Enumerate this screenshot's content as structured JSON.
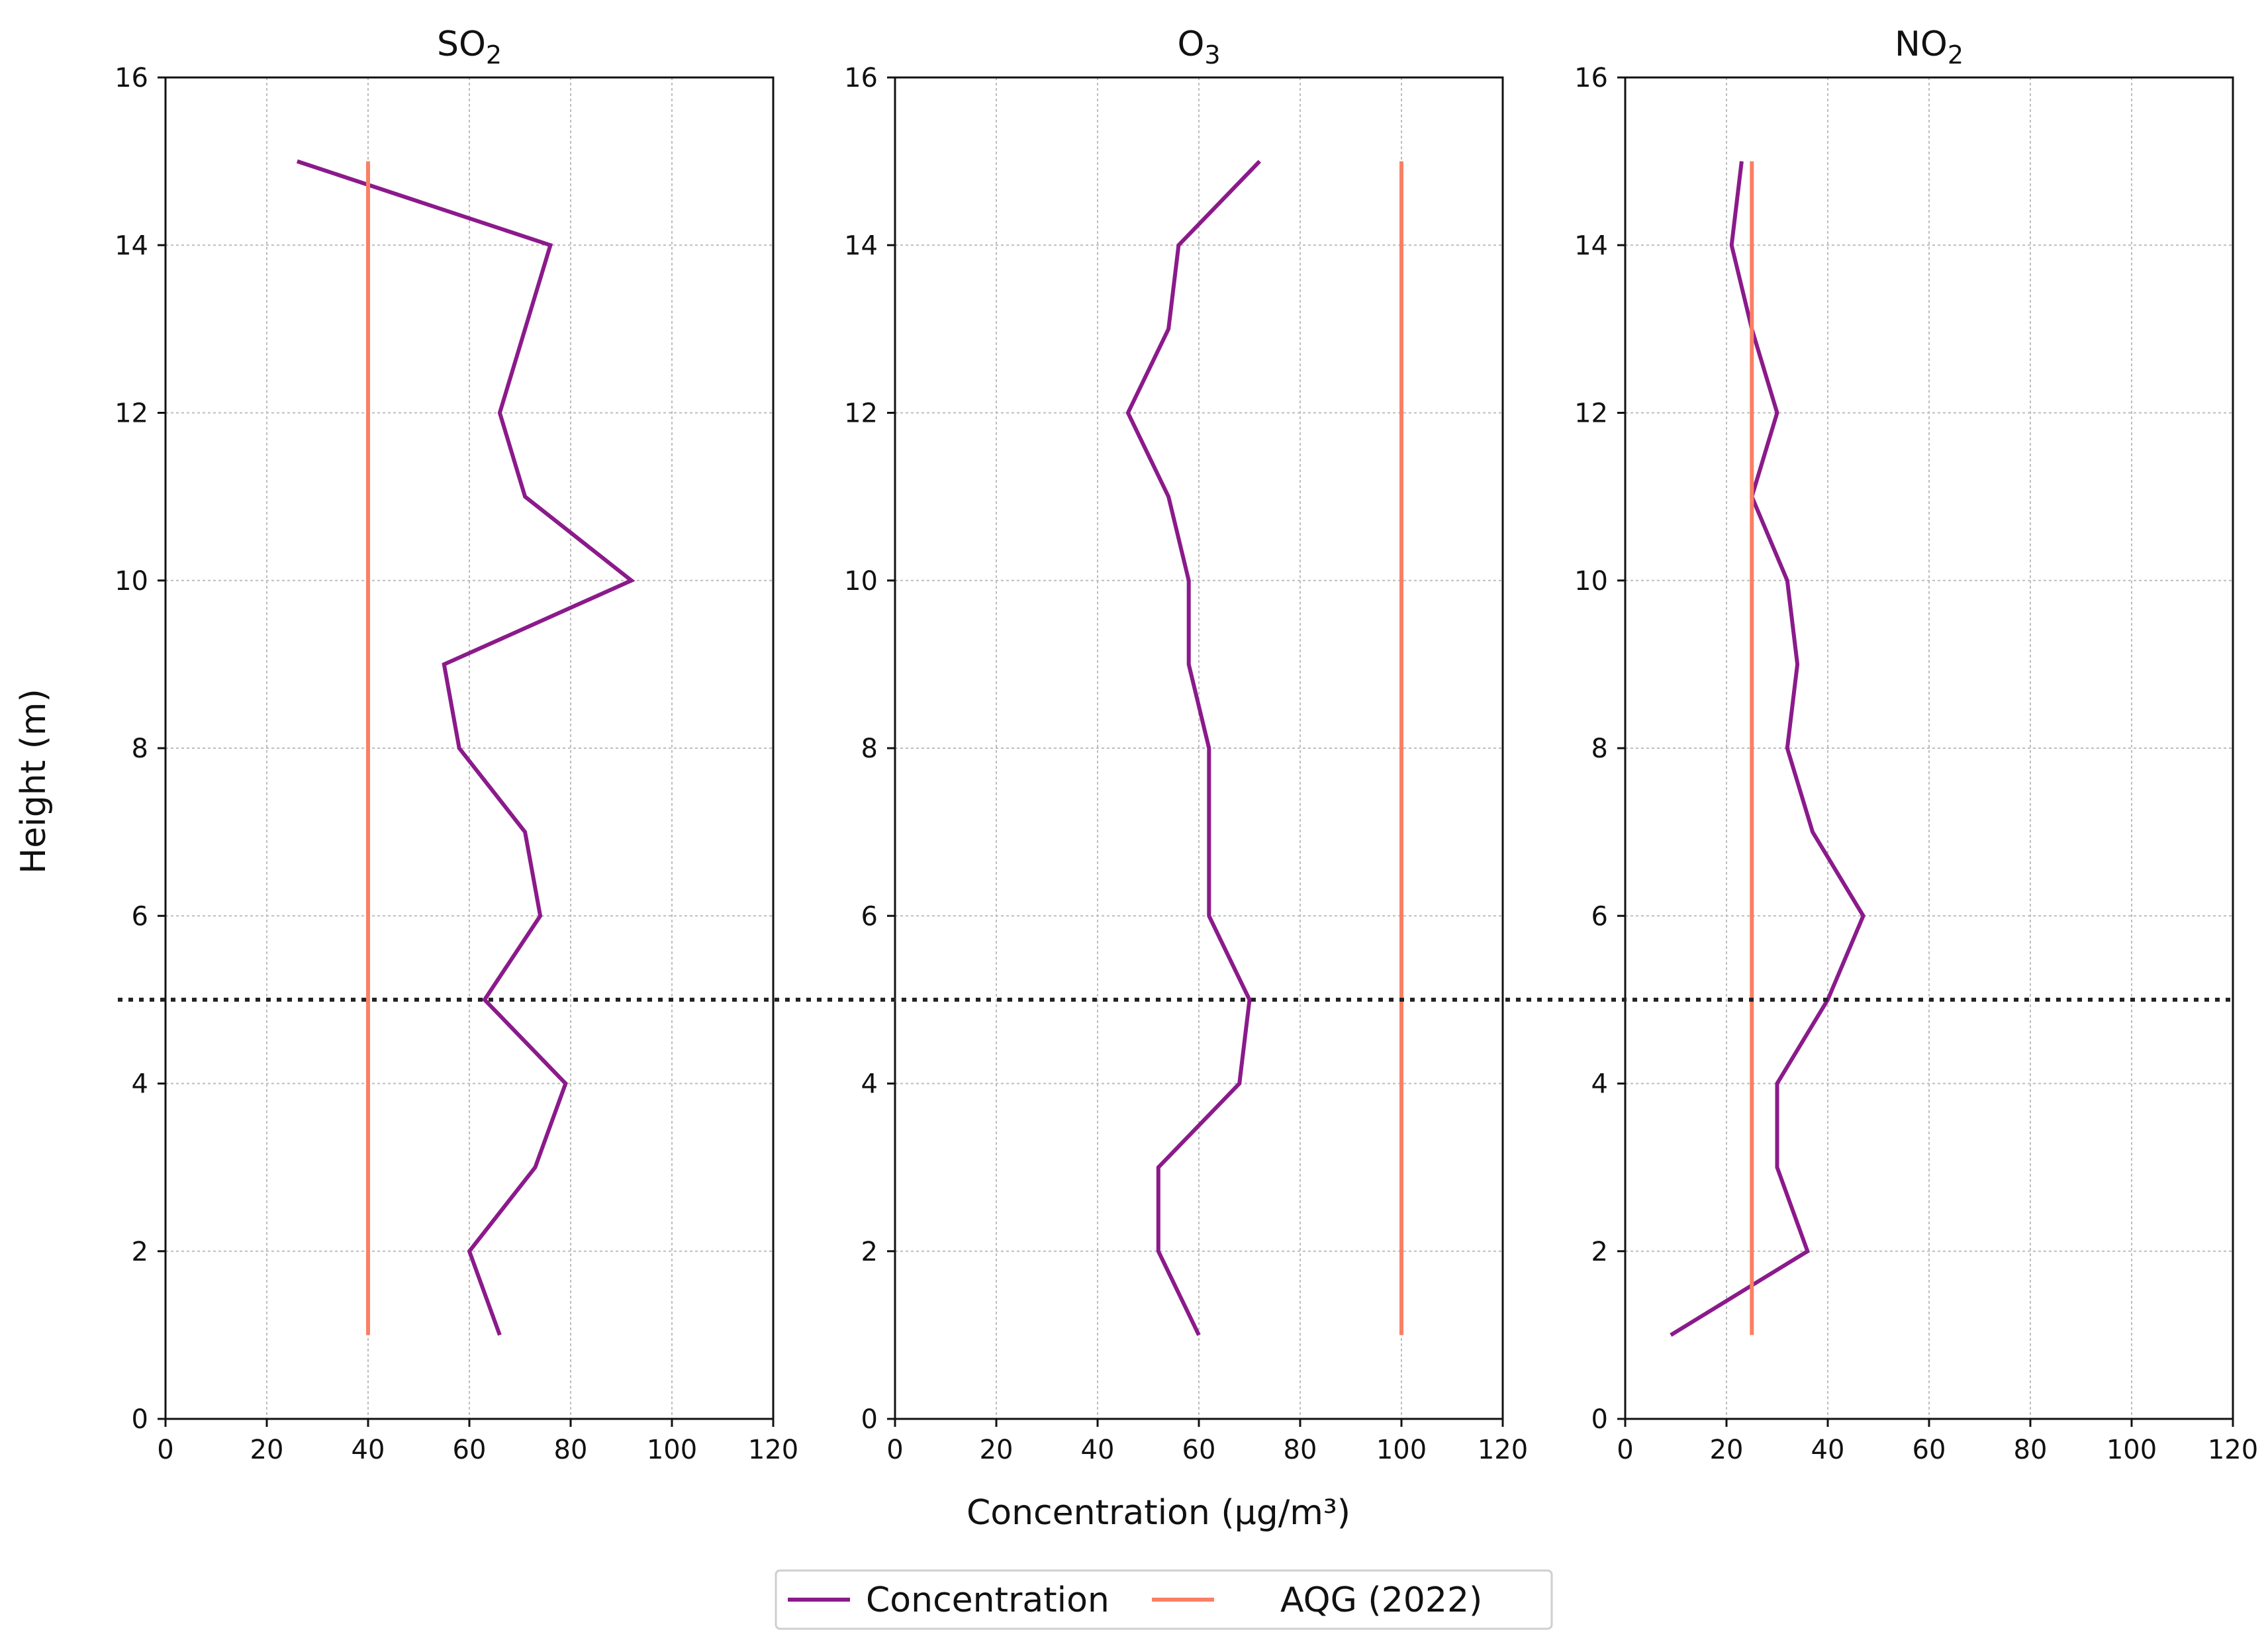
{
  "chart_data": {
    "type": "line",
    "xlabel": "Concentration (μg/m³)",
    "ylabel": "Height (m)",
    "xlim": [
      0,
      120
    ],
    "ylim": [
      0,
      16
    ],
    "xticks": [
      "0",
      "20",
      "40",
      "60",
      "80",
      "100",
      "120"
    ],
    "yticks": [
      "0",
      "2",
      "4",
      "6",
      "8",
      "10",
      "12",
      "14",
      "16"
    ],
    "grid": true,
    "reference_line": {
      "height": 5,
      "style": "dotted",
      "color": "#222222"
    },
    "legend": {
      "placement": "bottom-center",
      "entries": [
        {
          "label": "Concentration",
          "color": "#8b1a8b"
        },
        {
          "label": "AQG (2022)",
          "color": "#fa8064"
        }
      ]
    },
    "panels": [
      {
        "title_main": "SO",
        "title_sub": "2",
        "series": [
          {
            "name": "Concentration",
            "color": "#8b1a8b",
            "points": [
              [
                26,
                15
              ],
              [
                76,
                14
              ],
              [
                66,
                12
              ],
              [
                71,
                11
              ],
              [
                92,
                10
              ],
              [
                55,
                9
              ],
              [
                58,
                8
              ],
              [
                71,
                7
              ],
              [
                74,
                6
              ],
              [
                63,
                5
              ],
              [
                79,
                4
              ],
              [
                73,
                3
              ],
              [
                60,
                2
              ],
              [
                66,
                1
              ]
            ]
          },
          {
            "name": "AQG (2022)",
            "color": "#fa8064",
            "points": [
              [
                40,
                1
              ],
              [
                40,
                15
              ]
            ]
          }
        ]
      },
      {
        "title_main": "O",
        "title_sub": "3",
        "series": [
          {
            "name": "Concentration",
            "color": "#8b1a8b",
            "points": [
              [
                72,
                15
              ],
              [
                56,
                14
              ],
              [
                54,
                13
              ],
              [
                46,
                12
              ],
              [
                54,
                11
              ],
              [
                58,
                10
              ],
              [
                58,
                9
              ],
              [
                62,
                8
              ],
              [
                62,
                7
              ],
              [
                62,
                6
              ],
              [
                70,
                5
              ],
              [
                68,
                4
              ],
              [
                52,
                3
              ],
              [
                52,
                2
              ],
              [
                60,
                1
              ]
            ]
          },
          {
            "name": "AQG (2022)",
            "color": "#fa8064",
            "points": [
              [
                100,
                1
              ],
              [
                100,
                15
              ]
            ]
          }
        ]
      },
      {
        "title_main": "NO",
        "title_sub": "2",
        "series": [
          {
            "name": "Concentration",
            "color": "#8b1a8b",
            "points": [
              [
                23,
                15
              ],
              [
                21,
                14
              ],
              [
                25,
                13
              ],
              [
                30,
                12
              ],
              [
                25,
                11
              ],
              [
                32,
                10
              ],
              [
                34,
                9
              ],
              [
                32,
                8
              ],
              [
                37,
                7
              ],
              [
                47,
                6
              ],
              [
                40,
                5
              ],
              [
                30,
                4
              ],
              [
                30,
                3
              ],
              [
                36,
                2
              ],
              [
                9,
                1
              ]
            ]
          },
          {
            "name": "AQG (2022)",
            "color": "#fa8064",
            "points": [
              [
                25,
                1
              ],
              [
                25,
                15
              ]
            ]
          }
        ]
      }
    ]
  }
}
